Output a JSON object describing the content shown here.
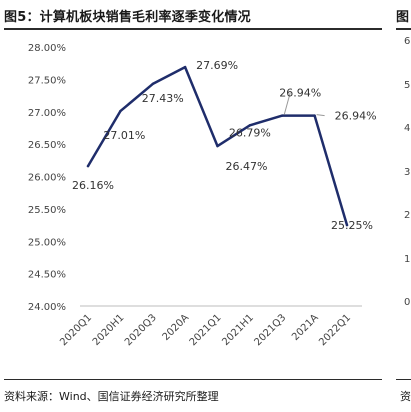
{
  "figure": {
    "title": "图5：计算机板块销售毛利率逐季变化情况",
    "source": "资料来源：Wind、国信证券经济研究所整理"
  },
  "neighbor": {
    "title_fragment": "图",
    "source_fragment": "资",
    "ticks": [
      "6",
      "5",
      "4",
      "3",
      "2",
      "1",
      "0"
    ]
  },
  "chart_data": {
    "type": "line",
    "title": "",
    "xlabel": "",
    "ylabel": "",
    "categories": [
      "2020Q1",
      "2020H1",
      "2020Q3",
      "2020A",
      "2021Q1",
      "2021H1",
      "2021Q3",
      "2021A",
      "2022Q1"
    ],
    "series": [
      {
        "values": [
          26.16,
          27.01,
          27.43,
          27.69,
          26.47,
          26.79,
          26.94,
          26.94,
          25.25
        ],
        "color": "#1f2d6b",
        "data_labels": [
          "26.16%",
          "27.01%",
          "27.43%",
          "27.69%",
          "26.47%",
          "26.79%",
          "26.94%",
          "26.94%",
          "25.25%"
        ]
      }
    ],
    "ylim": [
      24.0,
      28.0
    ],
    "y_ticks": [
      "28.00%",
      "27.50%",
      "27.00%",
      "26.50%",
      "26.00%",
      "25.50%",
      "25.00%",
      "24.50%",
      "24.00%"
    ],
    "y_tick_values": [
      28.0,
      27.5,
      27.0,
      26.5,
      26.0,
      25.5,
      25.0,
      24.5,
      24.0
    ],
    "grid": false,
    "legend": "none"
  }
}
